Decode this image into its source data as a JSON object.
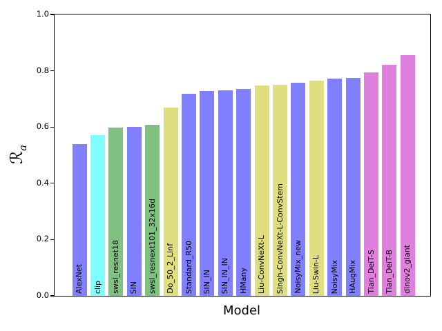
{
  "chart_data": {
    "type": "bar",
    "title": "",
    "xlabel": "Model",
    "ylabel": "ℛ_a",
    "ylabel_symbol": "ℛ",
    "ylabel_subscript": "a",
    "ylim": [
      0.0,
      1.0
    ],
    "yticks": [
      "0.0",
      "0.2",
      "0.4",
      "0.6",
      "0.8",
      "1.0"
    ],
    "grid": false,
    "legend": null,
    "categories": [
      "AlexNet",
      "clip",
      "swsl_resnet18",
      "SIN",
      "swsl_resnext101_32x16d",
      "Do_50_2_Linf",
      "Standard_R50",
      "SIN_IN",
      "SIN_IN_IN",
      "HMany",
      "Liu-ConvNeXt-L",
      "Singh-ConvNeXt-L-ConvStem",
      "NoisyMix_new",
      "Liu-Swin-L",
      "NoisyMix",
      "HAugMix",
      "Tian_DeiT-S",
      "Tian_DeiT-B",
      "dinov2_giant"
    ],
    "values": [
      0.54,
      0.57,
      0.597,
      0.6,
      0.608,
      0.668,
      0.718,
      0.728,
      0.731,
      0.736,
      0.747,
      0.751,
      0.758,
      0.765,
      0.773,
      0.775,
      0.793,
      0.822,
      0.855
    ],
    "bar_colors": [
      "#8080ff",
      "#80ffff",
      "#80c080",
      "#8080ff",
      "#80c080",
      "#dfdf80",
      "#8080ff",
      "#8080ff",
      "#8080ff",
      "#8080ff",
      "#dfdf80",
      "#dfdf80",
      "#8080ff",
      "#dfdf80",
      "#8080ff",
      "#8080ff",
      "#df80df",
      "#df80df",
      "#df80df"
    ],
    "palette": {
      "blue": "#8080ff",
      "cyan": "#80ffff",
      "green": "#80c080",
      "khaki": "#dfdf80",
      "magenta": "#df80df"
    },
    "axis_color": "#000000",
    "background_color": "#ffffff"
  }
}
